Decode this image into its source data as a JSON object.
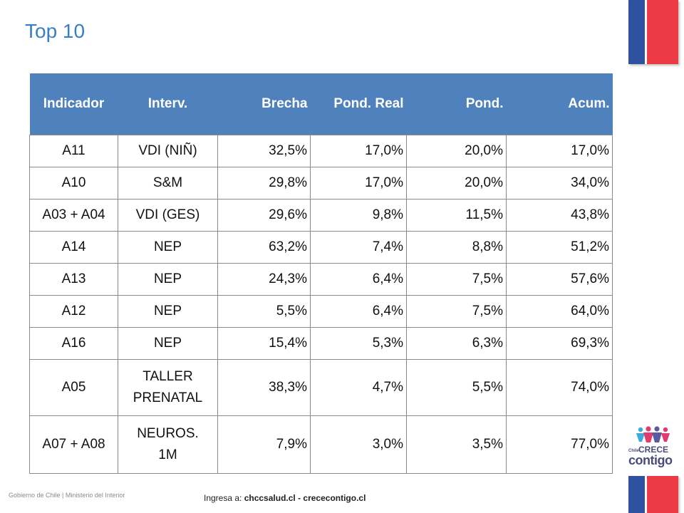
{
  "title": "Top 10",
  "table": {
    "headers": [
      "Indicador",
      "Interv.",
      "Brecha",
      "Pond. Real",
      "Pond.",
      "Acum."
    ],
    "rows": [
      {
        "indicador": "A11",
        "interv": [
          "VDI (NIÑ)"
        ],
        "brecha": "32,5%",
        "pond_real": "17,0%",
        "pond": "20,0%",
        "acum": "17,0%"
      },
      {
        "indicador": "A10",
        "interv": [
          "S&M"
        ],
        "brecha": "29,8%",
        "pond_real": "17,0%",
        "pond": "20,0%",
        "acum": "34,0%"
      },
      {
        "indicador": "A03 + A04",
        "interv": [
          "VDI (GES)"
        ],
        "brecha": "29,6%",
        "pond_real": "9,8%",
        "pond": "11,5%",
        "acum": "43,8%"
      },
      {
        "indicador": "A14",
        "interv": [
          "NEP"
        ],
        "brecha": "63,2%",
        "pond_real": "7,4%",
        "pond": "8,8%",
        "acum": "51,2%"
      },
      {
        "indicador": "A13",
        "interv": [
          "NEP"
        ],
        "brecha": "24,3%",
        "pond_real": "6,4%",
        "pond": "7,5%",
        "acum": "57,6%"
      },
      {
        "indicador": "A12",
        "interv": [
          "NEP"
        ],
        "brecha": "5,5%",
        "pond_real": "6,4%",
        "pond": "7,5%",
        "acum": "64,0%"
      },
      {
        "indicador": "A16",
        "interv": [
          "NEP"
        ],
        "brecha": "15,4%",
        "pond_real": "5,3%",
        "pond": "6,3%",
        "acum": "69,3%"
      },
      {
        "indicador": "A05",
        "interv": [
          "TALLER",
          "PRENATAL"
        ],
        "brecha": "38,3%",
        "pond_real": "4,7%",
        "pond": "5,5%",
        "acum": "74,0%"
      },
      {
        "indicador": "A07 + A08",
        "interv": [
          "NEUROS.",
          "1M"
        ],
        "brecha": "7,9%",
        "pond_real": "3,0%",
        "pond": "3,5%",
        "acum": "77,0%"
      }
    ]
  },
  "footer": {
    "left": "Gobierno de Chile | Ministerio del Interior",
    "center_prefix": "Ingresa a: ",
    "center_links": "chccsalud.cl - crececontigo.cl"
  },
  "logo": {
    "chile": "Chile",
    "crece": "CRECE",
    "contigo": "contigo"
  },
  "colors": {
    "header_bg": "#4f81bd",
    "title": "#3a7ec4",
    "flag_blue": "#2f52a0",
    "flag_red": "#ec3b44"
  },
  "icons": {
    "flag_top": "chile-flag-stripe",
    "flag_bottom": "chile-flag-stripe",
    "logo": "chile-crece-contigo-logo"
  }
}
